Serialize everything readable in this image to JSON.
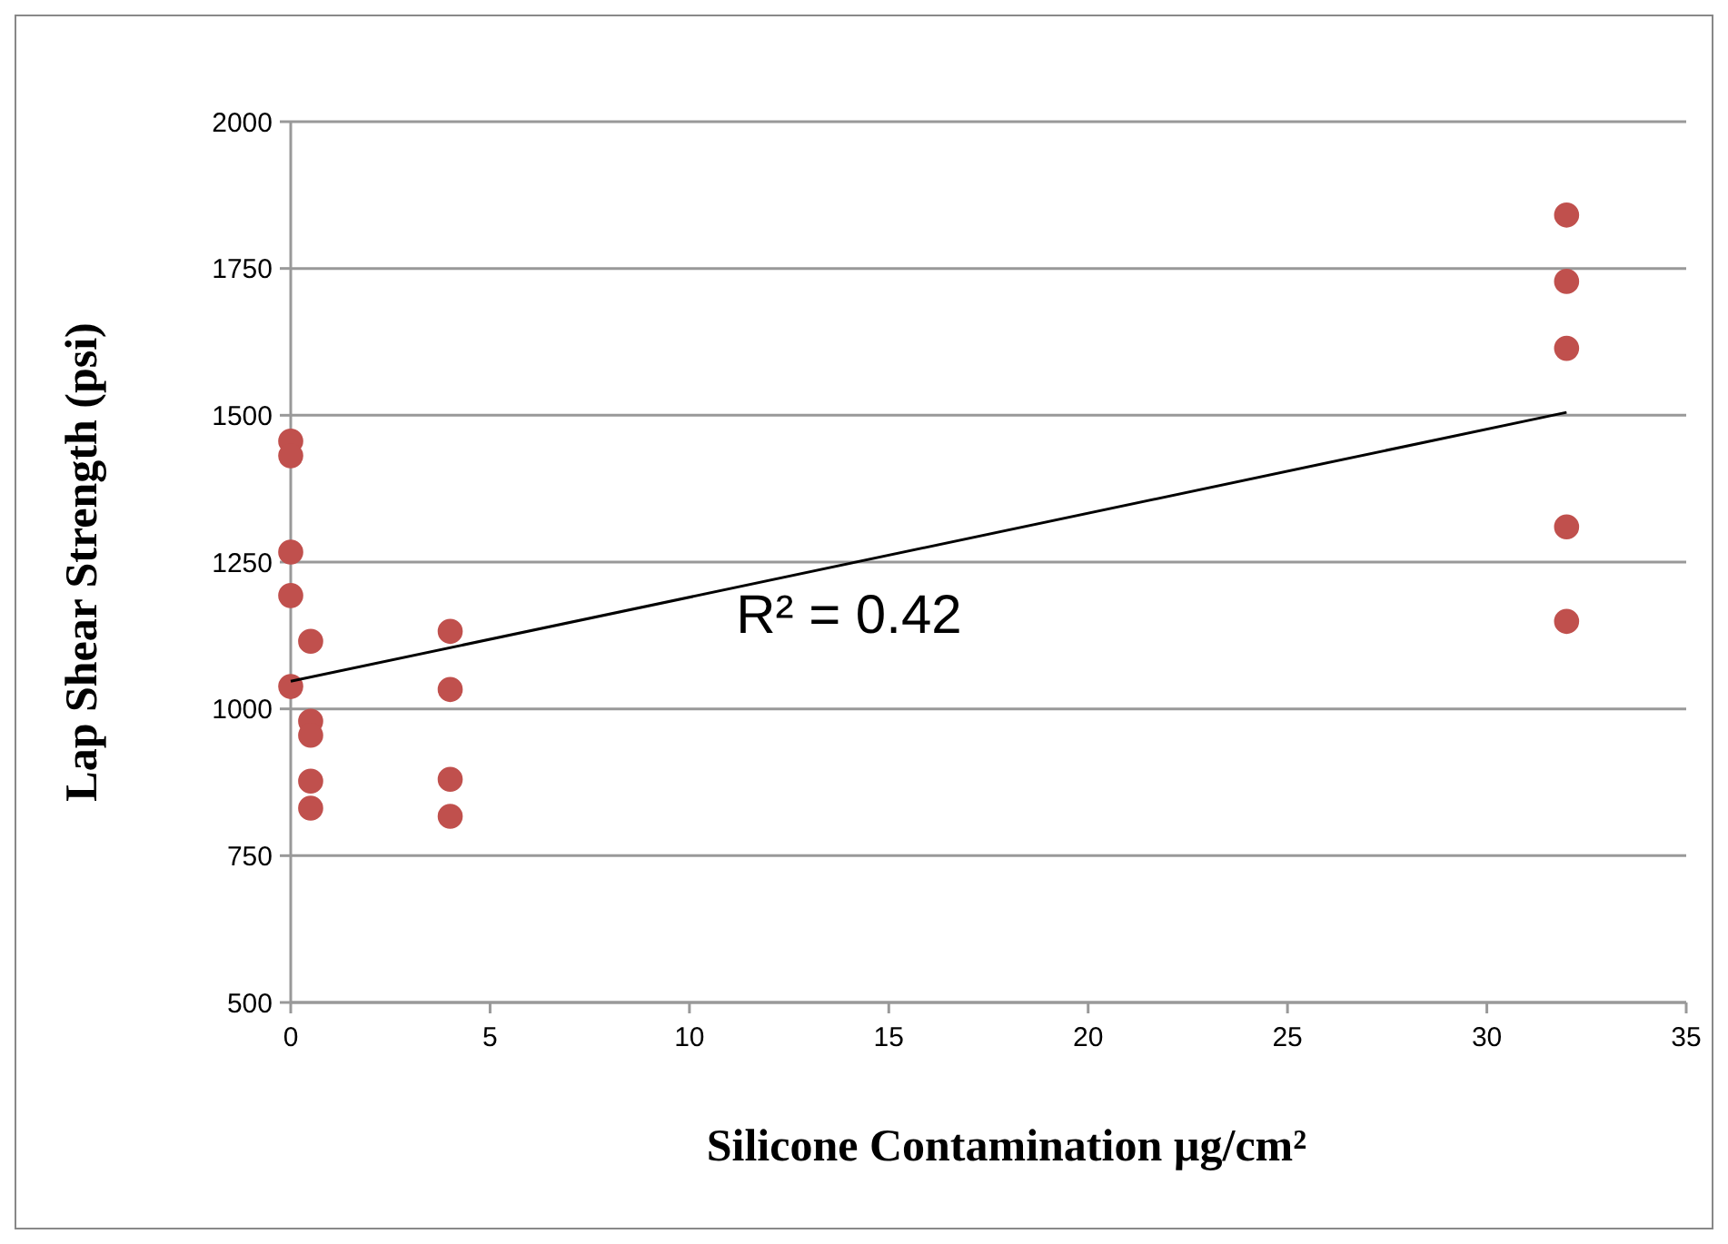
{
  "chart_data": {
    "type": "scatter",
    "xlabel": "Silicone Contamination µg/cm²",
    "ylabel": "Lap Shear Strength (psi)",
    "xlim": [
      0,
      35
    ],
    "xticks": [
      0,
      5,
      10,
      15,
      20,
      25,
      30,
      35
    ],
    "ylim": [
      500,
      2000
    ],
    "yticks": [
      500,
      750,
      1000,
      1250,
      1500,
      1750,
      2000
    ],
    "grid": "y",
    "marker": "circle",
    "series": [
      {
        "color": "#c0504d",
        "x": [
          0,
          0,
          0,
          0,
          0,
          0.5,
          0.5,
          0.5,
          0.5,
          0.5,
          4,
          4,
          4,
          4,
          32,
          32,
          32,
          32,
          32
        ],
        "values": [
          1456,
          1431,
          1267,
          1193,
          1038,
          1115,
          979,
          955,
          877,
          831,
          1132,
          1033,
          880,
          817,
          1841,
          1728,
          1614,
          1310,
          1149
        ]
      },
      {
        "type": "line",
        "color": "#000000",
        "x": [
          0,
          32
        ],
        "values": [
          1047,
          1505
        ],
        "marker": "none"
      }
    ],
    "annotations": [
      "R² = 0.42"
    ]
  }
}
